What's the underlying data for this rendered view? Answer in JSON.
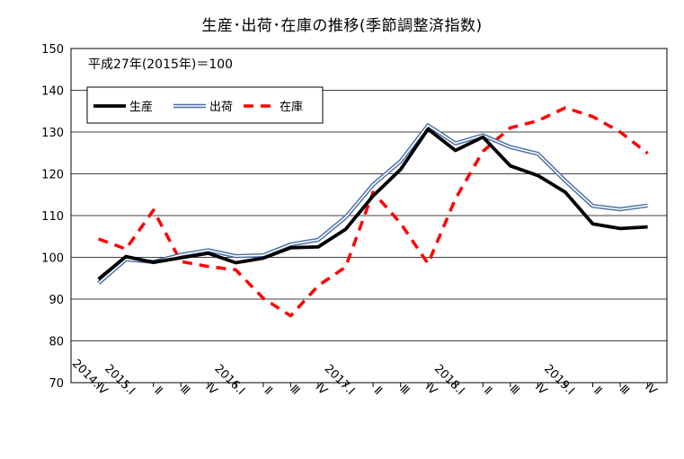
{
  "chart_data": {
    "type": "line",
    "title": "生産･出荷･在庫の推移(季節調整済指数)",
    "note": "平成27年(2015年)＝100",
    "categories": [
      "2014.Ⅳ",
      "2015.Ⅰ",
      "Ⅱ",
      "Ⅲ",
      "Ⅳ",
      "2016.Ⅰ",
      "Ⅱ",
      "Ⅲ",
      "Ⅳ",
      "2017.Ⅰ",
      "Ⅱ",
      "Ⅲ",
      "Ⅳ",
      "2018.Ⅰ",
      "Ⅱ",
      "Ⅲ",
      "Ⅳ",
      "2019.Ⅰ",
      "Ⅱ",
      "Ⅲ",
      "Ⅳ"
    ],
    "ylim": [
      70,
      150
    ],
    "yticks": [
      70,
      80,
      90,
      100,
      110,
      120,
      130,
      140,
      150
    ],
    "grid": true,
    "legend_position": "top-left",
    "series": [
      {
        "name": "生産",
        "color": "#000000",
        "style": "solid-thick",
        "values": [
          94.8,
          100.2,
          98.8,
          99.9,
          101.0,
          98.7,
          99.8,
          102.3,
          102.5,
          106.7,
          114.7,
          121.0,
          130.7,
          125.6,
          128.8,
          121.9,
          119.6,
          115.6,
          108.0,
          106.9,
          107.3
        ]
      },
      {
        "name": "出荷",
        "color": "#4a6fa5",
        "style": "double",
        "values": [
          93.8,
          99.5,
          98.9,
          100.6,
          101.7,
          100.3,
          100.5,
          103.1,
          104.2,
          109.6,
          117.4,
          123.0,
          131.6,
          127.3,
          129.2,
          126.4,
          124.8,
          118.3,
          112.3,
          111.5,
          112.4
        ]
      },
      {
        "name": "在庫",
        "color": "#ff0000",
        "style": "dashed",
        "values": [
          104.4,
          102.0,
          111.3,
          99.0,
          97.8,
          97.0,
          90.2,
          86.0,
          93.2,
          97.7,
          115.6,
          108.2,
          98.5,
          114.0,
          125.4,
          131.0,
          132.7,
          135.8,
          133.7,
          130.0,
          124.9
        ]
      }
    ]
  }
}
